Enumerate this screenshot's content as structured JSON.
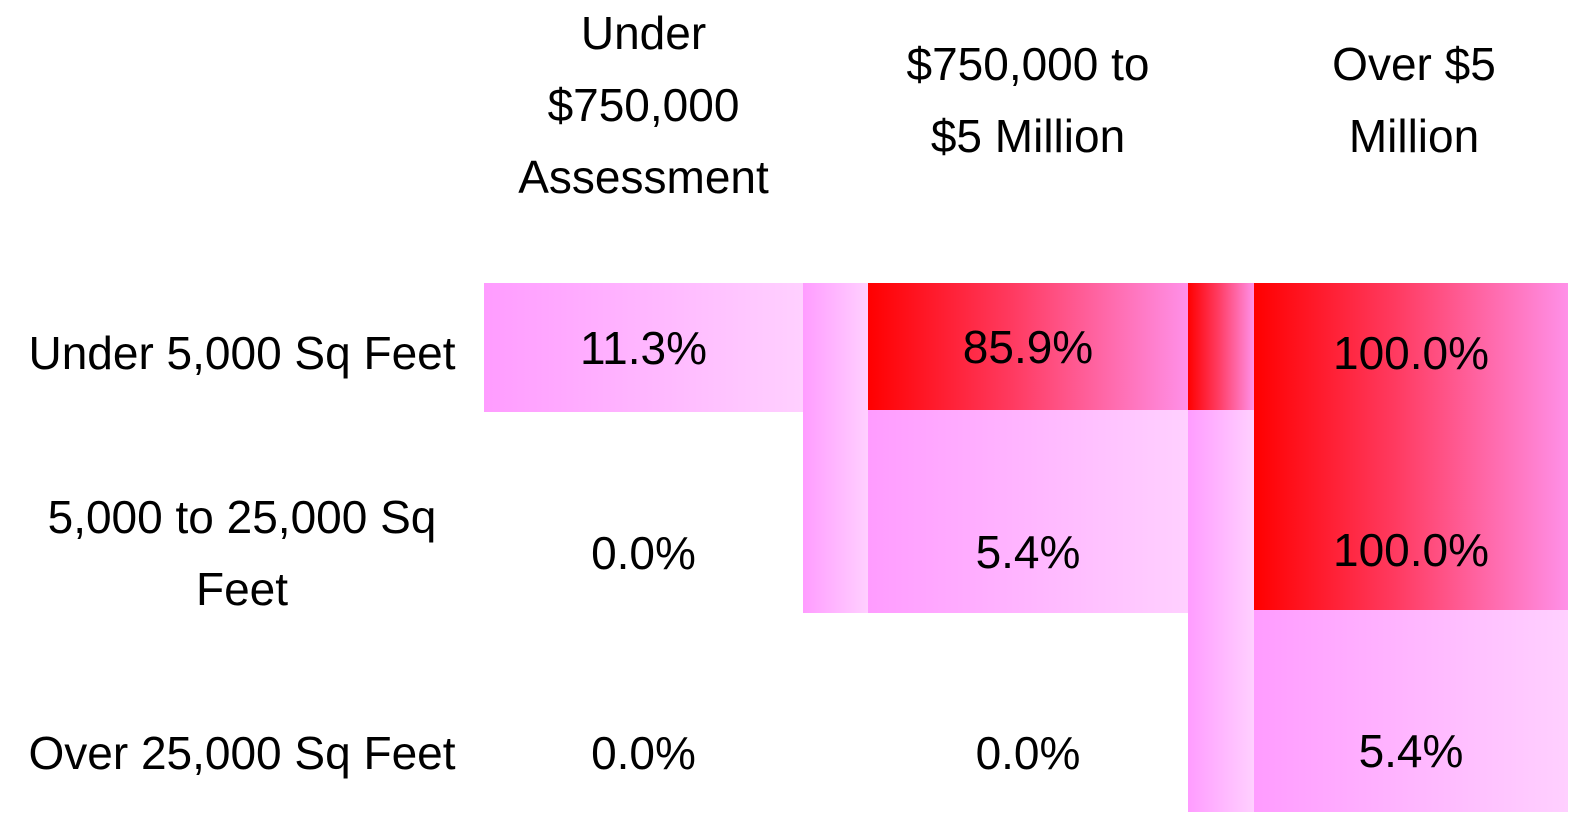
{
  "table": {
    "header": [
      "Under $750,000 Assessment",
      "$750,000 to $5 Million",
      "Over $5 Million"
    ],
    "rows": [
      [
        "Under 5,000 Sq Feet",
        "11.3%",
        "85.9%",
        "100.0%"
      ],
      [
        "5,000 to 25,000 Sq Feet",
        "0.0%",
        "5.4%",
        "100.0%"
      ],
      [
        "Over 25,000 Sq Feet",
        "0.0%",
        "0.0%",
        "5.4%"
      ]
    ]
  }
}
